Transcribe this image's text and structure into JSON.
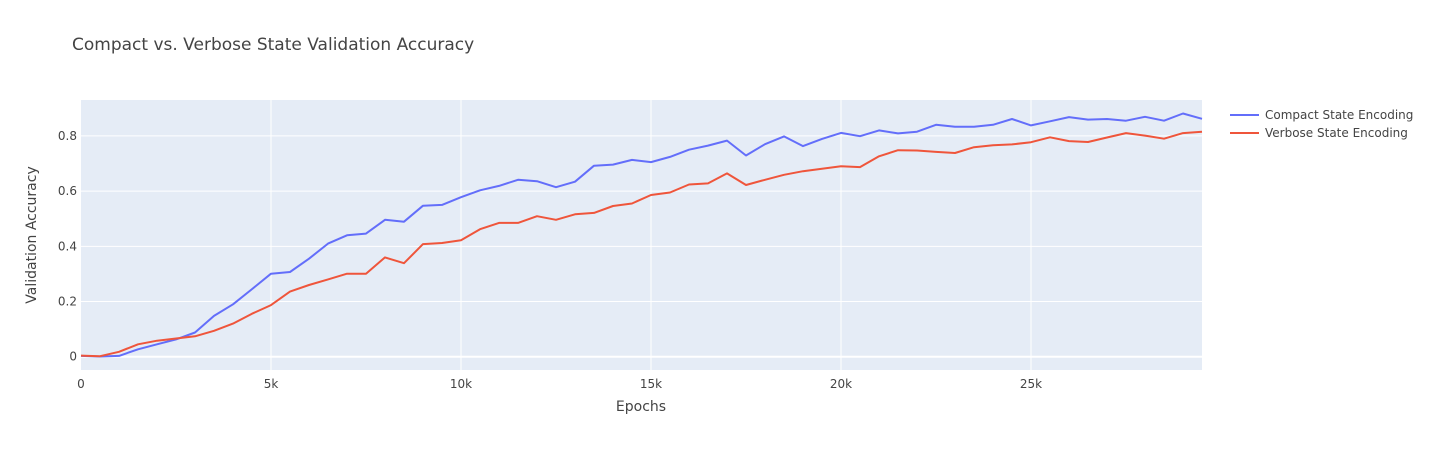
{
  "chart_data": {
    "type": "line",
    "title": "Compact vs. Verbose State Validation Accuracy",
    "xlabel": "Epochs",
    "ylabel": "Validation Accuracy",
    "xlim": [
      0,
      29500
    ],
    "ylim": [
      -0.048,
      0.93
    ],
    "x_ticks": [
      0,
      5000,
      10000,
      15000,
      20000,
      25000
    ],
    "x_tick_labels": [
      "0",
      "5k",
      "10k",
      "15k",
      "20k",
      "25k"
    ],
    "y_ticks": [
      0,
      0.2,
      0.4,
      0.6,
      0.8
    ],
    "y_tick_labels": [
      "0",
      "0.2",
      "0.4",
      "0.6",
      "0.8"
    ],
    "grid": true,
    "legend_position": "top-right",
    "x": [
      0,
      500,
      1000,
      1500,
      2000,
      2500,
      3000,
      3500,
      4000,
      4500,
      5000,
      5500,
      6000,
      6500,
      7000,
      7500,
      8000,
      8500,
      9000,
      9500,
      10000,
      10500,
      11000,
      11500,
      12000,
      12500,
      13000,
      13500,
      14000,
      14500,
      15000,
      15500,
      16000,
      16500,
      17000,
      17500,
      18000,
      18500,
      19000,
      19500,
      20000,
      20500,
      21000,
      21500,
      22000,
      22500,
      23000,
      23500,
      24000,
      24500,
      25000,
      25500,
      26000,
      26500,
      27000,
      27500,
      28000,
      28500,
      29000,
      29500
    ],
    "series": [
      {
        "name": "Compact State Encoding",
        "color": "#636efa",
        "values": [
          0.003,
          0.001,
          0.003,
          0.027,
          0.045,
          0.063,
          0.088,
          0.148,
          0.19,
          0.245,
          0.301,
          0.307,
          0.355,
          0.41,
          0.44,
          0.446,
          0.496,
          0.489,
          0.547,
          0.55,
          0.578,
          0.603,
          0.619,
          0.641,
          0.636,
          0.614,
          0.634,
          0.692,
          0.696,
          0.713,
          0.705,
          0.724,
          0.75,
          0.765,
          0.783,
          0.729,
          0.77,
          0.798,
          0.763,
          0.789,
          0.811,
          0.799,
          0.82,
          0.809,
          0.815,
          0.84,
          0.833,
          0.833,
          0.84,
          0.861,
          0.838,
          0.853,
          0.868,
          0.859,
          0.861,
          0.855,
          0.869,
          0.855,
          0.881,
          0.862
        ]
      },
      {
        "name": "Verbose State Encoding",
        "color": "#ef553b",
        "values": [
          0.004,
          0.002,
          0.018,
          0.045,
          0.058,
          0.066,
          0.074,
          0.094,
          0.12,
          0.156,
          0.187,
          0.236,
          0.26,
          0.28,
          0.301,
          0.301,
          0.36,
          0.339,
          0.408,
          0.412,
          0.422,
          0.462,
          0.485,
          0.485,
          0.509,
          0.496,
          0.516,
          0.521,
          0.546,
          0.555,
          0.586,
          0.595,
          0.624,
          0.628,
          0.664,
          0.622,
          0.641,
          0.659,
          0.672,
          0.681,
          0.69,
          0.687,
          0.726,
          0.748,
          0.747,
          0.742,
          0.738,
          0.759,
          0.766,
          0.769,
          0.777,
          0.795,
          0.781,
          0.778,
          0.794,
          0.81,
          0.801,
          0.79,
          0.81,
          0.815
        ]
      }
    ]
  }
}
